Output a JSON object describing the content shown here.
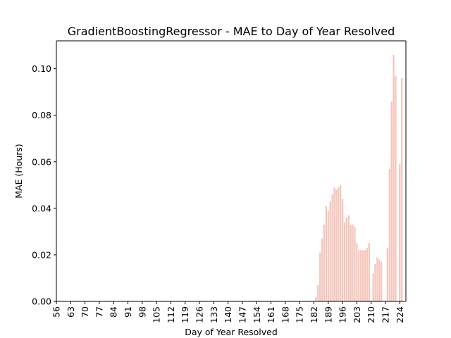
{
  "chart_data": {
    "type": "bar",
    "title": "GradientBoostingRegressor - MAE to Day of Year Resolved",
    "xlabel": "Day of Year Resolved",
    "ylabel": "MAE (Hours)",
    "x_range": [
      56,
      227
    ],
    "ylim": [
      0,
      0.112
    ],
    "xticks": [
      56,
      63,
      70,
      77,
      84,
      91,
      98,
      105,
      112,
      119,
      126,
      133,
      140,
      147,
      154,
      161,
      168,
      175,
      182,
      189,
      196,
      203,
      210,
      217,
      224
    ],
    "yticks": [
      "0.00",
      "0.02",
      "0.04",
      "0.06",
      "0.08",
      "0.10"
    ],
    "ytick_values": [
      0,
      0.02,
      0.04,
      0.06,
      0.08,
      0.1
    ],
    "bar_color": "#f4c6bc",
    "grid": false,
    "categories": [
      183,
      184,
      185,
      186,
      187,
      188,
      189,
      190,
      191,
      192,
      193,
      194,
      195,
      196,
      197,
      198,
      199,
      200,
      201,
      202,
      203,
      204,
      205,
      206,
      207,
      208,
      209,
      210,
      211,
      212,
      213,
      214,
      215,
      216,
      217,
      218,
      219,
      220,
      221,
      222,
      223,
      224,
      225
    ],
    "values": [
      0.002,
      0.007,
      0.021,
      0.027,
      0.033,
      0.041,
      0.039,
      0.043,
      0.046,
      0.049,
      0.048,
      0.049,
      0.05,
      0.044,
      0.034,
      0.036,
      0.037,
      0.033,
      0.033,
      0.032,
      0.025,
      0.022,
      0.022,
      0.022,
      0.022,
      0.023,
      0.025,
      0,
      0.012,
      0.016,
      0.019,
      0.018,
      0.017,
      0,
      0,
      0.023,
      0.057,
      0.086,
      0.106,
      0.097,
      0,
      0.059,
      0.096
    ]
  }
}
